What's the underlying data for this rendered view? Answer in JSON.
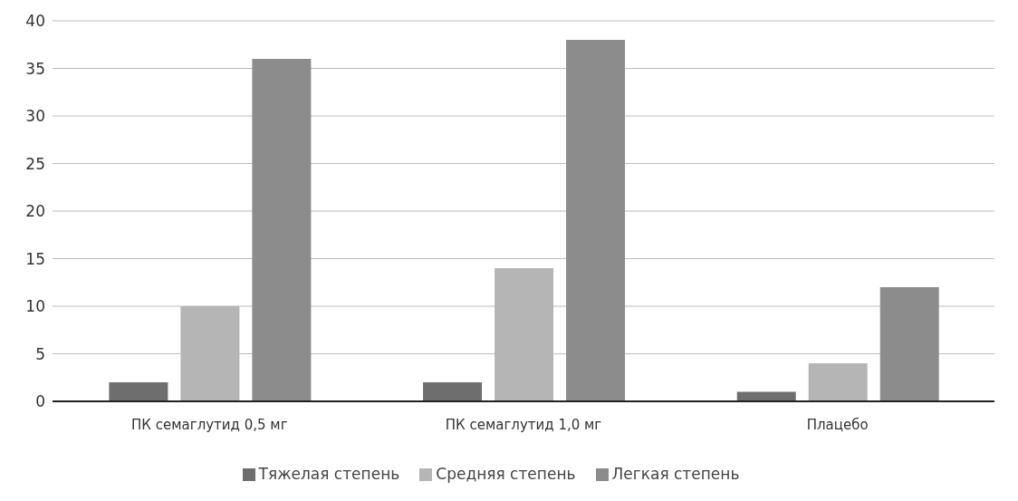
{
  "chart_data": {
    "type": "bar",
    "categories": [
      "ПК семаглутид 0,5 мг",
      "ПК семаглутид 1,0 мг",
      "Плацебо"
    ],
    "series": [
      {
        "name": "Тяжелая степень",
        "color": "#6e6e6e",
        "values": [
          2,
          2,
          1
        ]
      },
      {
        "name": "Средняя степень",
        "color": "#b5b5b5",
        "values": [
          10,
          14,
          4
        ]
      },
      {
        "name": "Легкая степень",
        "color": "#8c8c8c",
        "values": [
          36,
          38,
          12
        ]
      }
    ],
    "ylim": [
      0,
      40
    ],
    "yticks": [
      0,
      5,
      10,
      15,
      20,
      25,
      30,
      35,
      40
    ],
    "grid": "y",
    "legend": "bottom"
  }
}
